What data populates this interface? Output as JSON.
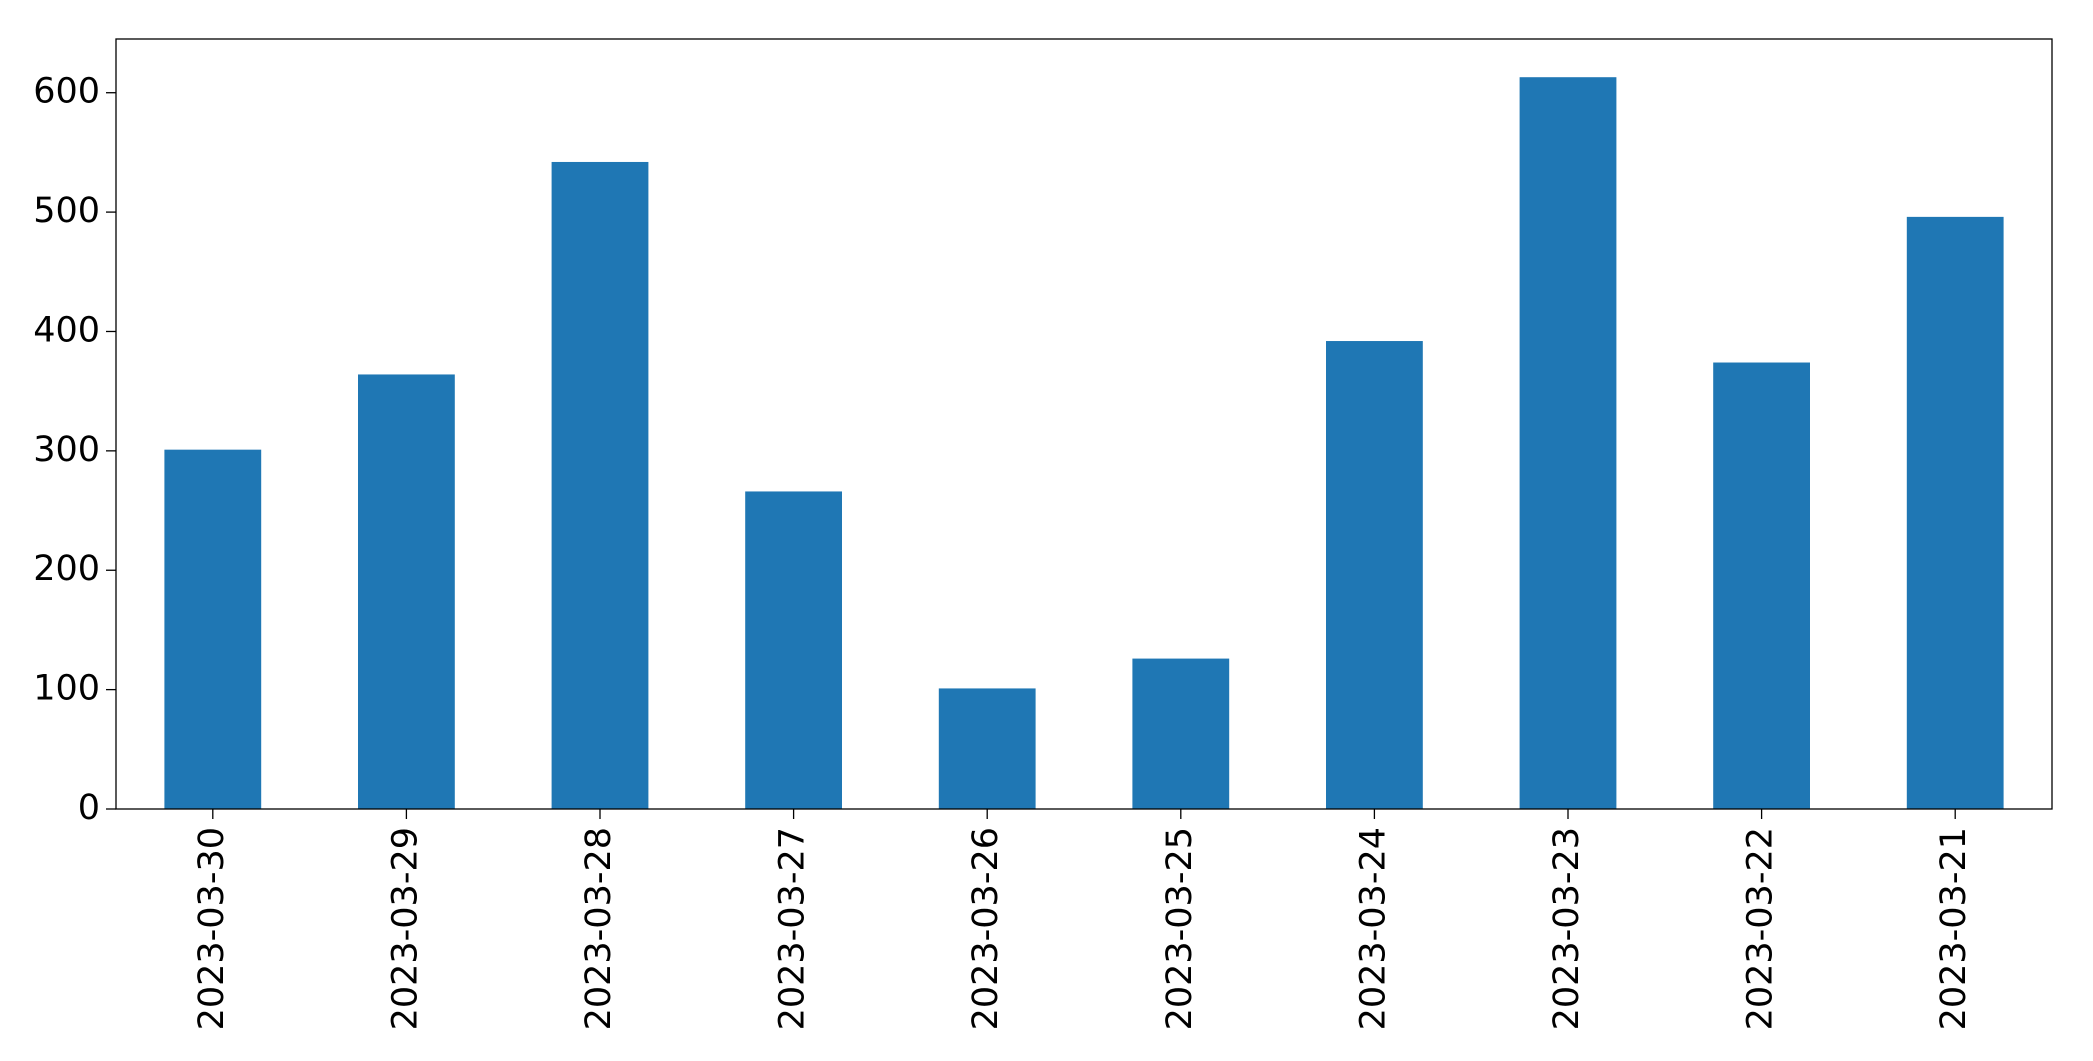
{
  "chart_data": {
    "type": "bar",
    "categories": [
      "2023-03-30",
      "2023-03-29",
      "2023-03-28",
      "2023-03-27",
      "2023-03-26",
      "2023-03-25",
      "2023-03-24",
      "2023-03-23",
      "2023-03-22",
      "2023-03-21"
    ],
    "values": [
      301,
      364,
      542,
      266,
      101,
      126,
      392,
      613,
      374,
      496
    ],
    "color": "#1f77b4",
    "ylim": [
      0,
      645
    ],
    "yticks": [
      0,
      100,
      200,
      300,
      400,
      500,
      600
    ],
    "grid": false
  }
}
